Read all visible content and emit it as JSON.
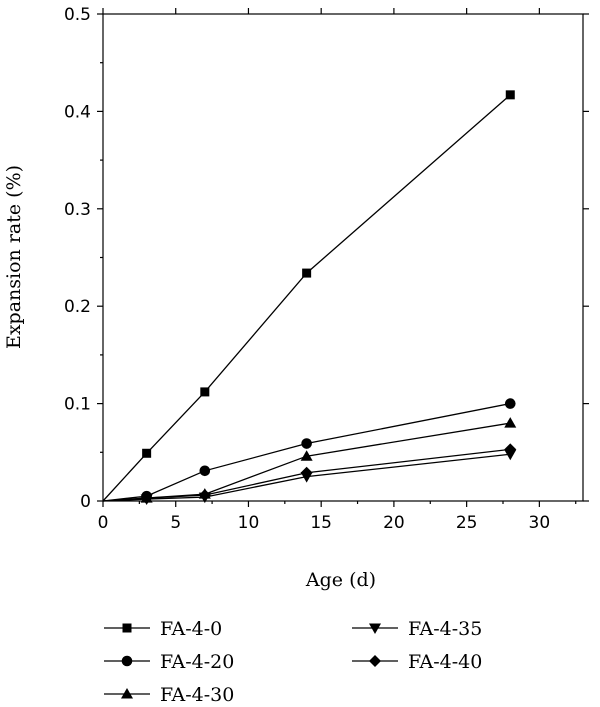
{
  "chart_data": {
    "type": "line",
    "xlabel": "Age (d)",
    "ylabel": "Expansion rate (%)",
    "xlim": [
      0,
      33
    ],
    "ylim": [
      0,
      0.5
    ],
    "xticks": [
      0,
      5,
      10,
      15,
      20,
      25,
      30
    ],
    "yticks": [
      0,
      0.1,
      0.2,
      0.3,
      0.4,
      0.5
    ],
    "xtick_labels": [
      "0",
      "5",
      "10",
      "15",
      "20",
      "25",
      "30"
    ],
    "ytick_labels": [
      "0",
      "0.1",
      "0.2",
      "0.3",
      "0.4",
      "0.5"
    ],
    "grid": false,
    "legend_position": "bottom",
    "x": [
      0,
      3,
      7,
      14,
      28
    ],
    "series": [
      {
        "name": "FA-4-0",
        "marker": "square",
        "values": [
          0,
          0.049,
          0.112,
          0.234,
          0.417
        ]
      },
      {
        "name": "FA-4-20",
        "marker": "circle",
        "values": [
          0,
          0.005,
          0.031,
          0.059,
          0.1
        ]
      },
      {
        "name": "FA-4-30",
        "marker": "triangle-up",
        "values": [
          0,
          0.003,
          0.007,
          0.046,
          0.08
        ]
      },
      {
        "name": "FA-4-35",
        "marker": "triangle-down",
        "values": [
          0,
          0.002,
          0.004,
          0.025,
          0.048
        ]
      },
      {
        "name": "FA-4-40",
        "marker": "diamond",
        "values": [
          0,
          0.003,
          0.006,
          0.029,
          0.053
        ]
      }
    ]
  }
}
